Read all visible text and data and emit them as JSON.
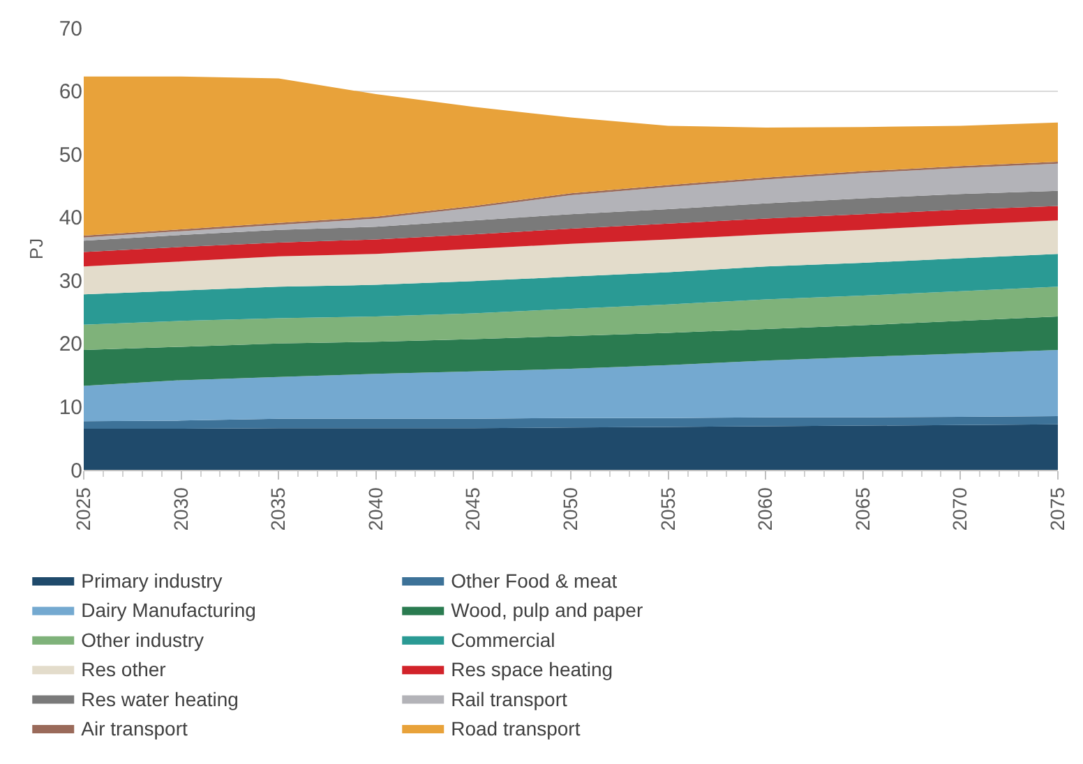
{
  "chart_data": {
    "type": "area",
    "stacked": true,
    "ylabel": "PJ",
    "x": [
      2025,
      2030,
      2035,
      2040,
      2045,
      2050,
      2055,
      2060,
      2065,
      2070,
      2075
    ],
    "xlim": [
      2025,
      2075
    ],
    "xticks": [
      2025,
      2030,
      2035,
      2040,
      2045,
      2050,
      2055,
      2060,
      2065,
      2070,
      2075
    ],
    "ylim": [
      0,
      70
    ],
    "yticks": [
      0,
      10,
      20,
      30,
      40,
      50,
      60,
      70
    ],
    "grid": "y",
    "legend": "bottom",
    "series": [
      {
        "name": "Primary industry",
        "color": "#1f4a6b",
        "values": [
          6.5,
          6.5,
          6.6,
          6.6,
          6.6,
          6.7,
          6.8,
          6.9,
          7,
          7.1,
          7.2
        ]
      },
      {
        "name": "Other Food & meat",
        "color": "#3d7298",
        "values": [
          1.2,
          1.3,
          1.5,
          1.5,
          1.5,
          1.5,
          1.4,
          1.4,
          1.3,
          1.3,
          1.3
        ]
      },
      {
        "name": "Dairy Manufacturing",
        "color": "#74a9d0",
        "values": [
          5.6,
          6.4,
          6.6,
          7.1,
          7.5,
          7.8,
          8.4,
          9,
          9.6,
          10,
          10.5
        ]
      },
      {
        "name": "Wood, pulp and paper",
        "color": "#2a7b50",
        "values": [
          5.7,
          5.3,
          5.3,
          5.1,
          5.1,
          5.2,
          5.1,
          5,
          5,
          5.2,
          5.3
        ]
      },
      {
        "name": "Other industry",
        "color": "#7fb27a",
        "values": [
          4,
          4.1,
          4,
          4,
          4.1,
          4.3,
          4.5,
          4.7,
          4.7,
          4.7,
          4.7
        ]
      },
      {
        "name": "Commercial",
        "color": "#2a9a94",
        "values": [
          4.8,
          4.8,
          5,
          5,
          5.1,
          5.1,
          5.1,
          5.2,
          5.2,
          5.2,
          5.2
        ]
      },
      {
        "name": "Res other",
        "color": "#e3dccb",
        "values": [
          4.4,
          4.6,
          4.8,
          4.9,
          5.1,
          5.2,
          5.2,
          5.1,
          5.2,
          5.3,
          5.3
        ]
      },
      {
        "name": "Res space heating",
        "color": "#d2232a",
        "values": [
          2.3,
          2.3,
          2.2,
          2.3,
          2.3,
          2.4,
          2.5,
          2.5,
          2.5,
          2.4,
          2.3
        ]
      },
      {
        "name": "Res water heating",
        "color": "#7a7a7a",
        "values": [
          1.8,
          1.9,
          2,
          2,
          2.2,
          2.3,
          2.3,
          2.4,
          2.5,
          2.5,
          2.4
        ]
      },
      {
        "name": "Rail transport",
        "color": "#b3b3b8",
        "values": [
          0.5,
          0.6,
          0.8,
          1.3,
          2,
          3,
          3.5,
          3.8,
          4,
          4.1,
          4.3
        ]
      },
      {
        "name": "Air transport",
        "color": "#9a6a5a",
        "values": [
          0.3,
          0.3,
          0.3,
          0.3,
          0.3,
          0.3,
          0.3,
          0.3,
          0.3,
          0.3,
          0.3
        ]
      },
      {
        "name": "Road transport",
        "color": "#e8a23a",
        "values": [
          25.2,
          24.2,
          22.9,
          19.4,
          15.7,
          12,
          9.4,
          7.9,
          7,
          6.4,
          6.2
        ]
      }
    ]
  }
}
